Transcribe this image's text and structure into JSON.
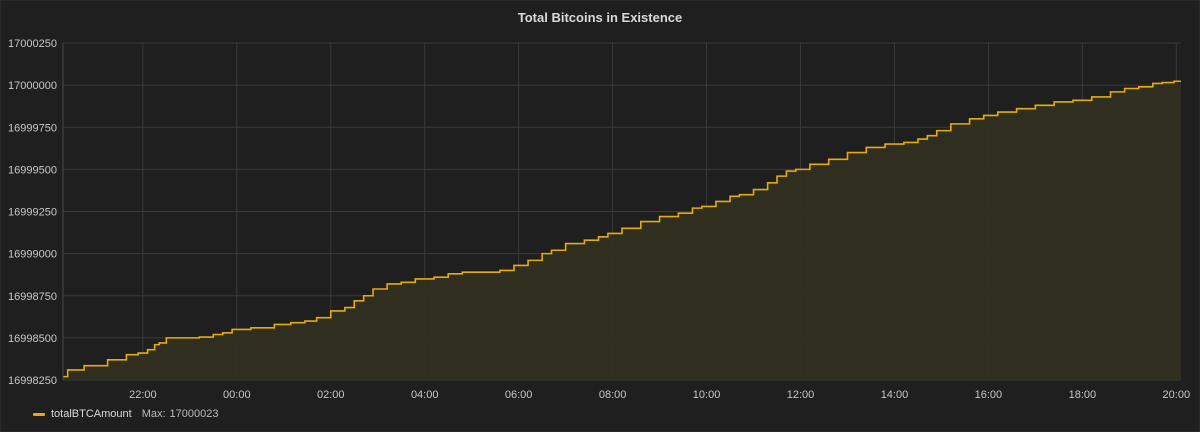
{
  "chart_data": {
    "type": "area",
    "title": "Total Bitcoins in Existence",
    "xlabel": "",
    "ylabel": "",
    "ylim": [
      16998250,
      17000250
    ],
    "y_ticks": [
      "17000250",
      "17000000",
      "16999750",
      "16999500",
      "16999250",
      "16999000",
      "16998750",
      "16998500",
      "16998250"
    ],
    "x_ticks": [
      "22:00",
      "00:00",
      "02:00",
      "04:00",
      "06:00",
      "08:00",
      "10:00",
      "12:00",
      "14:00",
      "16:00",
      "18:00",
      "20:00"
    ],
    "xlim_hours": [
      20.3,
      44.1
    ],
    "x_tick_hours": [
      22,
      24,
      26,
      28,
      30,
      32,
      34,
      36,
      38,
      40,
      42,
      44
    ],
    "grid": true,
    "legend_position": "bottom-left",
    "series": [
      {
        "name": "totalBTCAmount",
        "color": "#e5ac0e",
        "fill": "#32301f",
        "x": [
          20.3,
          20.5,
          21.0,
          21.5,
          21.8,
          22.0,
          22.2,
          22.3,
          22.4,
          22.6,
          23.0,
          23.4,
          23.6,
          23.8,
          24.0,
          24.6,
          25.0,
          25.3,
          25.6,
          25.8,
          26.2,
          26.4,
          26.6,
          26.8,
          27.0,
          27.4,
          27.6,
          28.0,
          28.4,
          28.6,
          29.0,
          29.4,
          29.8,
          30.0,
          30.4,
          30.6,
          30.8,
          31.2,
          31.6,
          31.8,
          32.0,
          32.4,
          32.8,
          33.2,
          33.6,
          33.8,
          34.0,
          34.4,
          34.6,
          34.8,
          35.2,
          35.4,
          35.6,
          35.8,
          36.0,
          36.4,
          36.8,
          37.2,
          37.6,
          38.0,
          38.4,
          38.6,
          38.8,
          39.0,
          39.4,
          39.8,
          40.0,
          40.4,
          40.8,
          41.2,
          41.6,
          42.0,
          42.4,
          42.8,
          43.0,
          43.4,
          43.6,
          43.8,
          44.1
        ],
        "values": [
          16998270,
          16998310,
          16998335,
          16998370,
          16998400,
          16998410,
          16998430,
          16998460,
          16998470,
          16998500,
          16998500,
          16998505,
          16998520,
          16998530,
          16998550,
          16998560,
          16998580,
          16998590,
          16998600,
          16998620,
          16998660,
          16998680,
          16998720,
          16998750,
          16998790,
          16998820,
          16998830,
          16998850,
          16998860,
          16998880,
          16998890,
          16998890,
          16998900,
          16998930,
          16998960,
          16999000,
          16999020,
          16999060,
          16999080,
          16999100,
          16999120,
          16999150,
          16999190,
          16999220,
          16999240,
          16999270,
          16999280,
          16999310,
          16999340,
          16999350,
          16999380,
          16999420,
          16999460,
          16999490,
          16999500,
          16999530,
          16999560,
          16999600,
          16999630,
          16999650,
          16999660,
          16999680,
          16999700,
          16999730,
          16999770,
          16999800,
          16999820,
          16999840,
          16999860,
          16999880,
          16999900,
          16999910,
          16999930,
          16999960,
          16999980,
          16999990,
          17000010,
          17000015,
          17000023
        ]
      }
    ]
  },
  "legend": {
    "stat_label": "Max:",
    "stat_value": "17000023"
  }
}
